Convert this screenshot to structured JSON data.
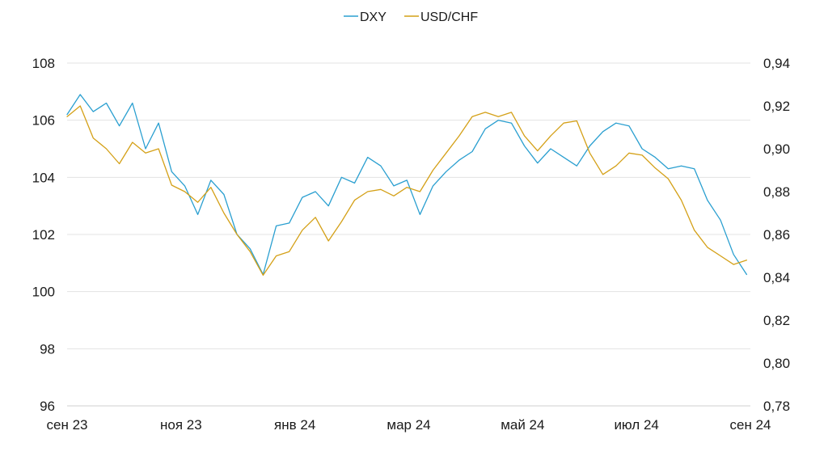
{
  "chart_data": {
    "type": "line",
    "title": "",
    "xlabel": "",
    "ylabel_left": "",
    "ylabel_right": "",
    "legend_position": "top-center",
    "grid": "horizontal",
    "x_ticks": [
      "сен 23",
      "ноя 23",
      "янв 24",
      "мар 24",
      "май 24",
      "июл 24",
      "сен 24"
    ],
    "x_range": [
      "2023-09-01",
      "2024-09-01"
    ],
    "y_left": {
      "ticks": [
        "96",
        "98",
        "100",
        "102",
        "104",
        "106",
        "108"
      ],
      "min": 96,
      "max": 108
    },
    "y_right": {
      "ticks": [
        "0,78",
        "0,80",
        "0,82",
        "0,84",
        "0,86",
        "0,88",
        "0,90",
        "0,92",
        "0,94"
      ],
      "min": 0.78,
      "max": 0.94
    },
    "series": [
      {
        "name": "DXY",
        "axis": "left",
        "color": "#2a9fd0",
        "x": [
          "2023-09-01",
          "2023-09-08",
          "2023-09-15",
          "2023-09-22",
          "2023-09-29",
          "2023-10-06",
          "2023-10-13",
          "2023-10-20",
          "2023-10-27",
          "2023-11-03",
          "2023-11-10",
          "2023-11-17",
          "2023-11-24",
          "2023-12-01",
          "2023-12-08",
          "2023-12-15",
          "2023-12-22",
          "2023-12-29",
          "2024-01-05",
          "2024-01-12",
          "2024-01-19",
          "2024-01-26",
          "2024-02-02",
          "2024-02-09",
          "2024-02-16",
          "2024-02-23",
          "2024-03-01",
          "2024-03-08",
          "2024-03-15",
          "2024-03-22",
          "2024-03-29",
          "2024-04-05",
          "2024-04-12",
          "2024-04-19",
          "2024-04-26",
          "2024-05-03",
          "2024-05-10",
          "2024-05-17",
          "2024-05-24",
          "2024-05-31",
          "2024-06-07",
          "2024-06-14",
          "2024-06-21",
          "2024-06-28",
          "2024-07-05",
          "2024-07-12",
          "2024-07-19",
          "2024-07-26",
          "2024-08-02",
          "2024-08-09",
          "2024-08-16",
          "2024-08-23",
          "2024-08-30"
        ],
        "values": [
          106.2,
          106.9,
          106.3,
          106.6,
          105.8,
          106.6,
          105.0,
          105.9,
          104.2,
          103.7,
          102.7,
          103.9,
          103.4,
          102.0,
          101.5,
          100.6,
          102.3,
          102.4,
          103.3,
          103.5,
          103.0,
          104.0,
          103.8,
          104.7,
          104.4,
          103.7,
          103.9,
          102.7,
          103.7,
          104.2,
          104.6,
          104.9,
          105.7,
          106.0,
          105.9,
          105.1,
          104.5,
          105.0,
          104.7,
          104.4,
          105.1,
          105.6,
          105.9,
          105.8,
          105.0,
          104.7,
          104.3,
          104.4,
          104.3,
          103.2,
          102.5,
          101.3,
          100.6
        ]
      },
      {
        "name": "USD/CHF",
        "axis": "right",
        "color": "#d4a017",
        "x": [
          "2023-09-01",
          "2023-09-08",
          "2023-09-15",
          "2023-09-22",
          "2023-09-29",
          "2023-10-06",
          "2023-10-13",
          "2023-10-20",
          "2023-10-27",
          "2023-11-03",
          "2023-11-10",
          "2023-11-17",
          "2023-11-24",
          "2023-12-01",
          "2023-12-08",
          "2023-12-15",
          "2023-12-22",
          "2023-12-29",
          "2024-01-05",
          "2024-01-12",
          "2024-01-19",
          "2024-01-26",
          "2024-02-02",
          "2024-02-09",
          "2024-02-16",
          "2024-02-23",
          "2024-03-01",
          "2024-03-08",
          "2024-03-15",
          "2024-03-22",
          "2024-03-29",
          "2024-04-05",
          "2024-04-12",
          "2024-04-19",
          "2024-04-26",
          "2024-05-03",
          "2024-05-10",
          "2024-05-17",
          "2024-05-24",
          "2024-05-31",
          "2024-06-07",
          "2024-06-14",
          "2024-06-21",
          "2024-06-28",
          "2024-07-05",
          "2024-07-12",
          "2024-07-19",
          "2024-07-26",
          "2024-08-02",
          "2024-08-09",
          "2024-08-16",
          "2024-08-23",
          "2024-08-30"
        ],
        "values": [
          0.915,
          0.92,
          0.905,
          0.9,
          0.893,
          0.903,
          0.898,
          0.9,
          0.883,
          0.88,
          0.875,
          0.882,
          0.87,
          0.86,
          0.852,
          0.841,
          0.85,
          0.852,
          0.862,
          0.868,
          0.857,
          0.866,
          0.876,
          0.88,
          0.881,
          0.878,
          0.882,
          0.88,
          0.89,
          0.898,
          0.906,
          0.915,
          0.917,
          0.915,
          0.917,
          0.906,
          0.899,
          0.906,
          0.912,
          0.913,
          0.898,
          0.888,
          0.892,
          0.898,
          0.897,
          0.891,
          0.886,
          0.876,
          0.862,
          0.854,
          0.85,
          0.846,
          0.848
        ]
      }
    ]
  }
}
